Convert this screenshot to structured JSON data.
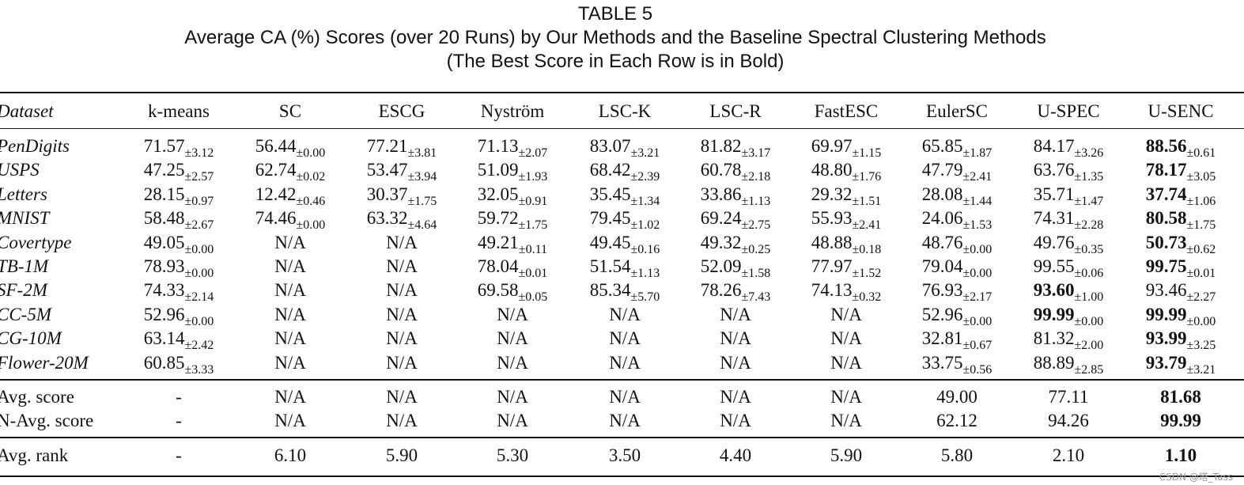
{
  "caption": {
    "label": "TABLE 5",
    "title": "Average CA (%) Scores (over 20 Runs) by Our Methods and the Baseline Spectral Clustering Methods",
    "note": "(The Best Score in Each Row is in Bold)"
  },
  "table": {
    "header": [
      "Dataset",
      "k-means",
      "SC",
      "ESCG",
      "Nyström",
      "LSC-K",
      "LSC-R",
      "FastESC",
      "EulerSC",
      "U-SPEC",
      "U-SENC"
    ],
    "rows": [
      {
        "dataset": "PenDigits",
        "cells": [
          {
            "value": "71.57",
            "std": "±3.12"
          },
          {
            "value": "56.44",
            "std": "±0.00"
          },
          {
            "value": "77.21",
            "std": "±3.81"
          },
          {
            "value": "71.13",
            "std": "±2.07"
          },
          {
            "value": "83.07",
            "std": "±3.21"
          },
          {
            "value": "81.82",
            "std": "±3.17"
          },
          {
            "value": "69.97",
            "std": "±1.15"
          },
          {
            "value": "65.85",
            "std": "±1.87"
          },
          {
            "value": "84.17",
            "std": "±3.26"
          },
          {
            "value": "88.56",
            "std": "±0.61",
            "bold": true
          }
        ]
      },
      {
        "dataset": "USPS",
        "cells": [
          {
            "value": "47.25",
            "std": "±2.57"
          },
          {
            "value": "62.74",
            "std": "±0.02"
          },
          {
            "value": "53.47",
            "std": "±3.94"
          },
          {
            "value": "51.09",
            "std": "±1.93"
          },
          {
            "value": "68.42",
            "std": "±2.39"
          },
          {
            "value": "60.78",
            "std": "±2.18"
          },
          {
            "value": "48.80",
            "std": "±1.76"
          },
          {
            "value": "47.79",
            "std": "±2.41"
          },
          {
            "value": "63.76",
            "std": "±1.35"
          },
          {
            "value": "78.17",
            "std": "±3.05",
            "bold": true
          }
        ]
      },
      {
        "dataset": "Letters",
        "cells": [
          {
            "value": "28.15",
            "std": "±0.97"
          },
          {
            "value": "12.42",
            "std": "±0.46"
          },
          {
            "value": "30.37",
            "std": "±1.75"
          },
          {
            "value": "32.05",
            "std": "±0.91"
          },
          {
            "value": "35.45",
            "std": "±1.34"
          },
          {
            "value": "33.86",
            "std": "±1.13"
          },
          {
            "value": "29.32",
            "std": "±1.51"
          },
          {
            "value": "28.08",
            "std": "±1.44"
          },
          {
            "value": "35.71",
            "std": "±1.47"
          },
          {
            "value": "37.74",
            "std": "±1.06",
            "bold": true
          }
        ]
      },
      {
        "dataset": "MNIST",
        "cells": [
          {
            "value": "58.48",
            "std": "±2.67"
          },
          {
            "value": "74.46",
            "std": "±0.00"
          },
          {
            "value": "63.32",
            "std": "±4.64"
          },
          {
            "value": "59.72",
            "std": "±1.75"
          },
          {
            "value": "79.45",
            "std": "±1.02"
          },
          {
            "value": "69.24",
            "std": "±2.75"
          },
          {
            "value": "55.93",
            "std": "±2.41"
          },
          {
            "value": "24.06",
            "std": "±1.53"
          },
          {
            "value": "74.31",
            "std": "±2.28"
          },
          {
            "value": "80.58",
            "std": "±1.75",
            "bold": true
          }
        ]
      },
      {
        "dataset": "Covertype",
        "cells": [
          {
            "value": "49.05",
            "std": "±0.00"
          },
          "N/A",
          "N/A",
          {
            "value": "49.21",
            "std": "±0.11"
          },
          {
            "value": "49.45",
            "std": "±0.16"
          },
          {
            "value": "49.32",
            "std": "±0.25"
          },
          {
            "value": "48.88",
            "std": "±0.18"
          },
          {
            "value": "48.76",
            "std": "±0.00"
          },
          {
            "value": "49.76",
            "std": "±0.35"
          },
          {
            "value": "50.73",
            "std": "±0.62",
            "bold": true
          }
        ]
      },
      {
        "dataset": "TB-1M",
        "cells": [
          {
            "value": "78.93",
            "std": "±0.00"
          },
          "N/A",
          "N/A",
          {
            "value": "78.04",
            "std": "±0.01"
          },
          {
            "value": "51.54",
            "std": "±1.13"
          },
          {
            "value": "52.09",
            "std": "±1.58"
          },
          {
            "value": "77.97",
            "std": "±1.52"
          },
          {
            "value": "79.04",
            "std": "±0.00"
          },
          {
            "value": "99.55",
            "std": "±0.06"
          },
          {
            "value": "99.75",
            "std": "±0.01",
            "bold": true
          }
        ]
      },
      {
        "dataset": "SF-2M",
        "cells": [
          {
            "value": "74.33",
            "std": "±2.14"
          },
          "N/A",
          "N/A",
          {
            "value": "69.58",
            "std": "±0.05"
          },
          {
            "value": "85.34",
            "std": "±5.70"
          },
          {
            "value": "78.26",
            "std": "±7.43"
          },
          {
            "value": "74.13",
            "std": "±0.32"
          },
          {
            "value": "76.93",
            "std": "±2.17"
          },
          {
            "value": "93.60",
            "std": "±1.00",
            "bold": true
          },
          {
            "value": "93.46",
            "std": "±2.27"
          }
        ]
      },
      {
        "dataset": "CC-5M",
        "cells": [
          {
            "value": "52.96",
            "std": "±0.00"
          },
          "N/A",
          "N/A",
          "N/A",
          "N/A",
          "N/A",
          "N/A",
          {
            "value": "52.96",
            "std": "±0.00"
          },
          {
            "value": "99.99",
            "std": "±0.00",
            "bold": true
          },
          {
            "value": "99.99",
            "std": "±0.00",
            "bold": true
          }
        ]
      },
      {
        "dataset": "CG-10M",
        "cells": [
          {
            "value": "63.14",
            "std": "±2.42"
          },
          "N/A",
          "N/A",
          "N/A",
          "N/A",
          "N/A",
          "N/A",
          {
            "value": "32.81",
            "std": "±0.67"
          },
          {
            "value": "81.32",
            "std": "±2.00"
          },
          {
            "value": "93.99",
            "std": "±3.25",
            "bold": true
          }
        ]
      },
      {
        "dataset": "Flower-20M",
        "cells": [
          {
            "value": "60.85",
            "std": "±3.33"
          },
          "N/A",
          "N/A",
          "N/A",
          "N/A",
          "N/A",
          "N/A",
          {
            "value": "33.75",
            "std": "±0.56"
          },
          {
            "value": "88.89",
            "std": "±2.85"
          },
          {
            "value": "93.79",
            "std": "±3.21",
            "bold": true
          }
        ]
      }
    ],
    "summary": [
      {
        "label": "Avg. score",
        "cells": [
          "-",
          "N/A",
          "N/A",
          "N/A",
          "N/A",
          "N/A",
          "N/A",
          "49.00",
          "77.11",
          {
            "value": "81.68",
            "bold": true
          }
        ]
      },
      {
        "label": "N-Avg. score",
        "cells": [
          "-",
          "N/A",
          "N/A",
          "N/A",
          "N/A",
          "N/A",
          "N/A",
          "62.12",
          "94.26",
          {
            "value": "99.99",
            "bold": true
          }
        ]
      }
    ],
    "rank": {
      "label": "Avg. rank",
      "cells": [
        "-",
        "6.10",
        "5.90",
        "5.30",
        "3.50",
        "4.40",
        "5.90",
        "5.80",
        "2.10",
        {
          "value": "1.10",
          "bold": true
        }
      ]
    }
  },
  "watermark": "CSDN @塔_Tass"
}
